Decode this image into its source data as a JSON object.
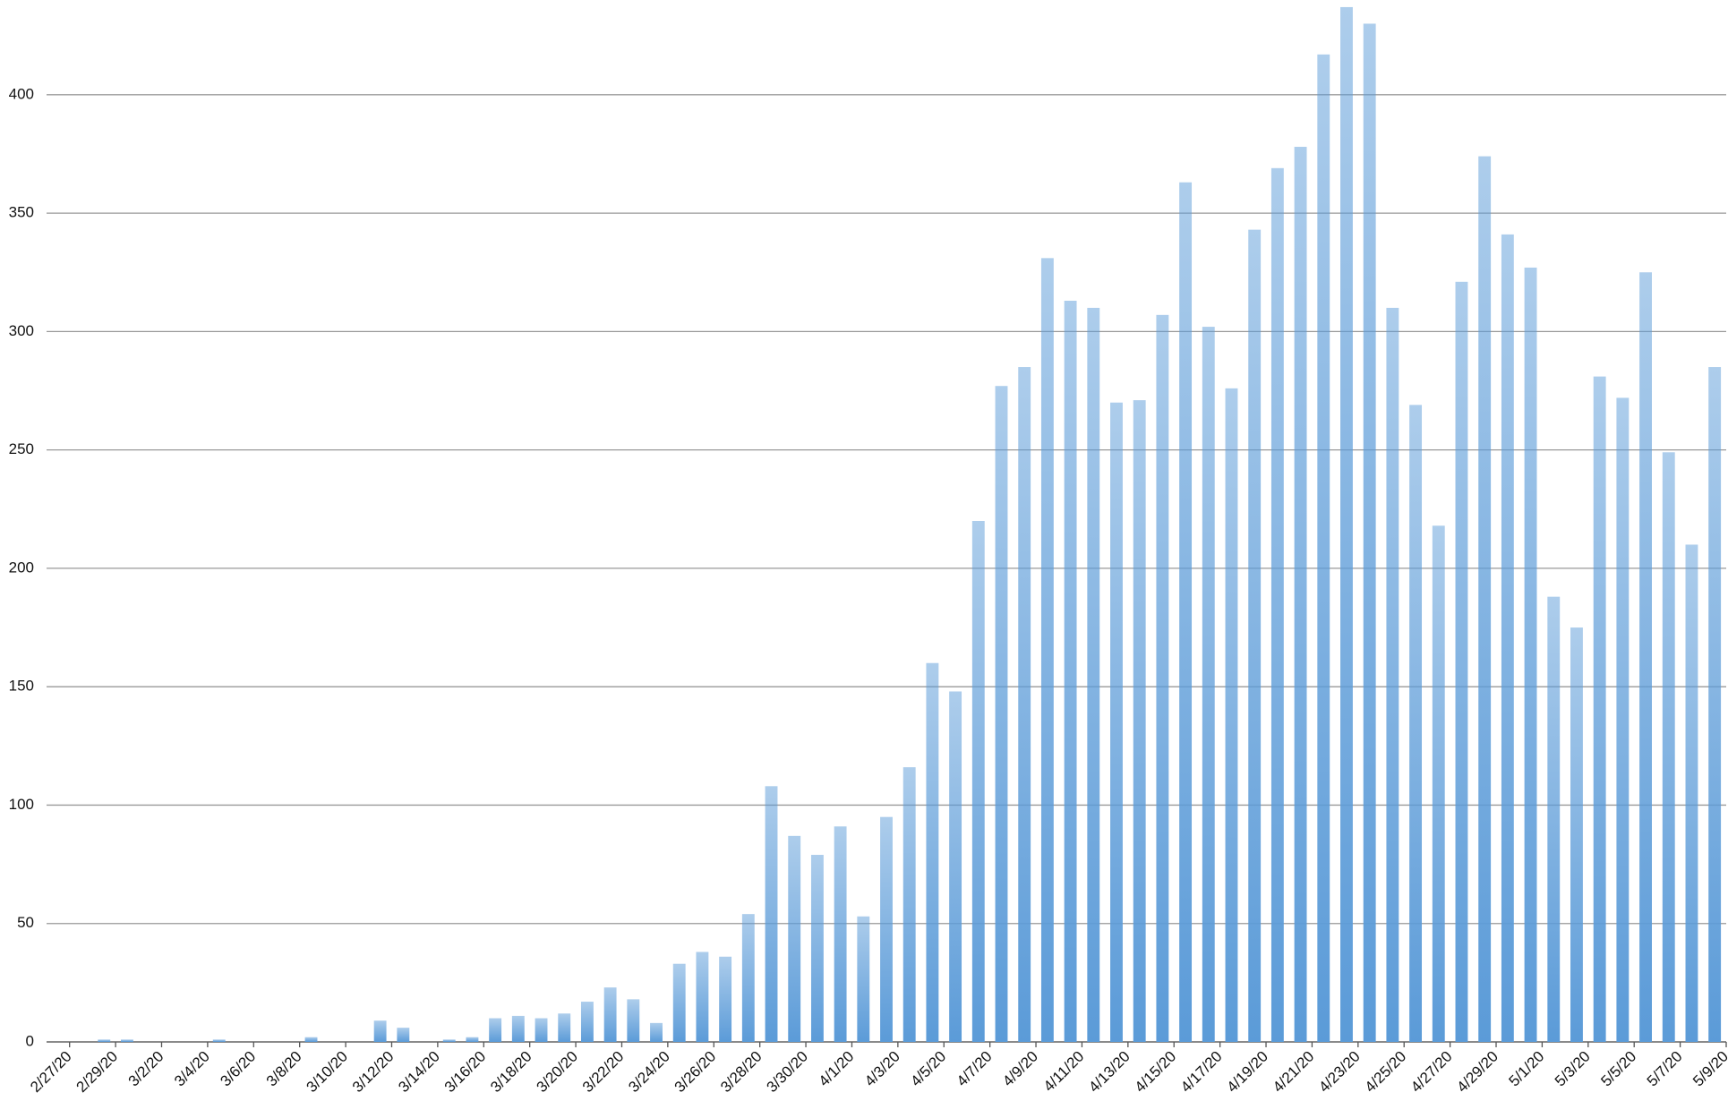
{
  "chart_data": {
    "type": "bar",
    "categories": [
      "2/27/20",
      null,
      "2/29/20",
      null,
      "3/2/20",
      null,
      "3/4/20",
      null,
      "3/6/20",
      null,
      "3/8/20",
      null,
      "3/10/20",
      null,
      "3/12/20",
      null,
      "3/14/20",
      null,
      "3/16/20",
      null,
      "3/18/20",
      null,
      "3/20/20",
      null,
      "3/22/20",
      null,
      "3/24/20",
      null,
      "3/26/20",
      null,
      "3/28/20",
      null,
      "3/30/20",
      null,
      "4/1/20",
      null,
      "4/3/20",
      null,
      "4/5/20",
      null,
      "4/7/20",
      null,
      "4/9/20",
      null,
      "4/11/20",
      null,
      "4/13/20",
      null,
      "4/15/20",
      null,
      "4/17/20",
      null,
      "4/19/20",
      null,
      "4/21/20",
      null,
      "4/23/20",
      null,
      "4/25/20",
      null,
      "4/27/20",
      null,
      "4/29/20",
      null,
      "5/1/20",
      null,
      "5/3/20",
      null,
      "5/5/20",
      null,
      "5/7/20",
      null,
      "5/9/20"
    ],
    "values": [
      0,
      0,
      1,
      1,
      0,
      0,
      0,
      1,
      0,
      0,
      0,
      2,
      0,
      0,
      9,
      6,
      0,
      1,
      2,
      10,
      11,
      10,
      12,
      17,
      23,
      18,
      8,
      33,
      38,
      36,
      54,
      108,
      87,
      79,
      91,
      53,
      95,
      116,
      160,
      148,
      220,
      277,
      285,
      331,
      313,
      310,
      270,
      271,
      307,
      363,
      302,
      276,
      343,
      369,
      378,
      417,
      437,
      430,
      310,
      269,
      218,
      321,
      374,
      341,
      327,
      188,
      175,
      281,
      272,
      325,
      249,
      210,
      285
    ],
    "color": "#5b9bd8",
    "ylim": [
      0,
      440
    ],
    "yticks": [
      0,
      50,
      100,
      150,
      200,
      250,
      300,
      350,
      400
    ],
    "grid": true
  }
}
